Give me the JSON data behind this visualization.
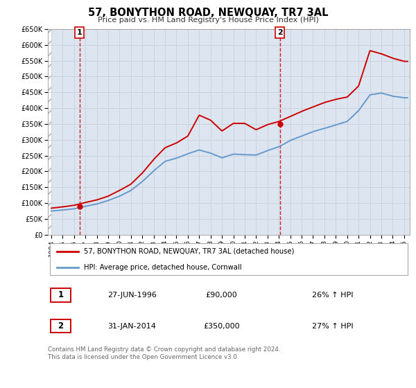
{
  "title": "57, BONYTHON ROAD, NEWQUAY, TR7 3AL",
  "subtitle": "Price paid vs. HM Land Registry's House Price Index (HPI)",
  "ylim": [
    0,
    650000
  ],
  "xlim_start": 1993.7,
  "xlim_end": 2025.5,
  "yticks": [
    0,
    50000,
    100000,
    150000,
    200000,
    250000,
    300000,
    350000,
    400000,
    450000,
    500000,
    550000,
    600000,
    650000
  ],
  "ytick_labels": [
    "£0",
    "£50K",
    "£100K",
    "£150K",
    "£200K",
    "£250K",
    "£300K",
    "£350K",
    "£400K",
    "£450K",
    "£500K",
    "£550K",
    "£600K",
    "£650K"
  ],
  "xticks": [
    1994,
    1995,
    1996,
    1997,
    1998,
    1999,
    2000,
    2001,
    2002,
    2003,
    2004,
    2005,
    2006,
    2007,
    2008,
    2009,
    2010,
    2011,
    2012,
    2013,
    2014,
    2015,
    2016,
    2017,
    2018,
    2019,
    2020,
    2021,
    2022,
    2023,
    2024,
    2025
  ],
  "property_color": "#cc0000",
  "hpi_color": "#6699cc",
  "grid_color": "#c8d0dc",
  "bg_color": "#dde5f0",
  "sale1_year": 1996.49,
  "sale1_price": 90000,
  "sale2_year": 2014.08,
  "sale2_price": 350000,
  "legend_label1": "57, BONYTHON ROAD, NEWQUAY, TR7 3AL (detached house)",
  "legend_label2": "HPI: Average price, detached house, Cornwall",
  "table_row1": [
    "1",
    "27-JUN-1996",
    "£90,000",
    "26% ↑ HPI"
  ],
  "table_row2": [
    "2",
    "31-JAN-2014",
    "£350,000",
    "27% ↑ HPI"
  ],
  "footer": "Contains HM Land Registry data © Crown copyright and database right 2024.\nThis data is licensed under the Open Government Licence v3.0.",
  "hpi_key_points": {
    "1994": 75000,
    "1995": 78000,
    "1996": 82000,
    "1997": 90000,
    "1998": 97000,
    "1999": 108000,
    "2000": 122000,
    "2001": 140000,
    "2002": 168000,
    "2003": 202000,
    "2004": 232000,
    "2005": 242000,
    "2006": 256000,
    "2007": 268000,
    "2008": 258000,
    "2009": 243000,
    "2010": 255000,
    "2011": 253000,
    "2012": 252000,
    "2013": 266000,
    "2014": 278000,
    "2015": 298000,
    "2016": 312000,
    "2017": 326000,
    "2018": 336000,
    "2019": 347000,
    "2020": 358000,
    "2021": 392000,
    "2022": 442000,
    "2023": 448000,
    "2024": 438000,
    "2025": 433000
  },
  "prop_key_points": {
    "1994": 84000,
    "1995": 88000,
    "1996": 93000,
    "1997": 102000,
    "1998": 110000,
    "1999": 122000,
    "2000": 140000,
    "2001": 160000,
    "2002": 195000,
    "2003": 238000,
    "2004": 275000,
    "2005": 290000,
    "2006": 312000,
    "2007": 378000,
    "2008": 362000,
    "2009": 328000,
    "2010": 352000,
    "2011": 352000,
    "2012": 332000,
    "2013": 348000,
    "2014": 358000,
    "2015": 374000,
    "2016": 390000,
    "2017": 404000,
    "2018": 418000,
    "2019": 428000,
    "2020": 435000,
    "2021": 470000,
    "2022": 582000,
    "2023": 572000,
    "2024": 558000,
    "2025": 548000
  }
}
